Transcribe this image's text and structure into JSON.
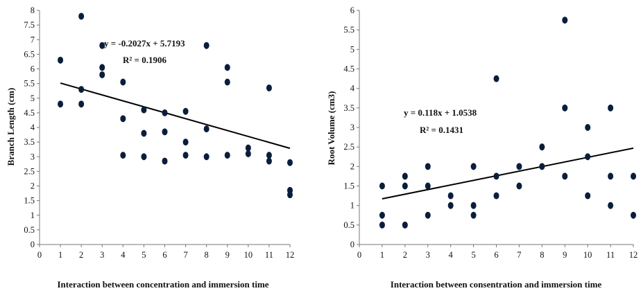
{
  "chart_data": [
    {
      "type": "scatter",
      "title": "",
      "xlabel": "Interaction between concentration and immersion time",
      "ylabel": "Branch Length (cm)",
      "xlim": [
        0,
        12
      ],
      "ylim": [
        0,
        8
      ],
      "xticks": [
        "0",
        "1",
        "2",
        "3",
        "4",
        "5",
        "6",
        "7",
        "8",
        "9",
        "10",
        "11",
        "12"
      ],
      "yticks": [
        "0",
        "0.5",
        "1",
        "1.5",
        "2",
        "2.5",
        "3",
        "3.5",
        "4",
        "4.5",
        "5",
        "5.5",
        "6",
        "6.5",
        "7",
        "7.5",
        "8"
      ],
      "grid": false,
      "legend": "none",
      "marker_color": "#0a1e3c",
      "points": [
        {
          "x": 1,
          "y": 6.3
        },
        {
          "x": 1,
          "y": 4.8
        },
        {
          "x": 2,
          "y": 7.8
        },
        {
          "x": 2,
          "y": 5.3
        },
        {
          "x": 2,
          "y": 4.8
        },
        {
          "x": 3,
          "y": 6.8
        },
        {
          "x": 3,
          "y": 6.05
        },
        {
          "x": 3,
          "y": 5.8
        },
        {
          "x": 4,
          "y": 5.55
        },
        {
          "x": 4,
          "y": 4.3
        },
        {
          "x": 4,
          "y": 3.05
        },
        {
          "x": 5,
          "y": 4.6
        },
        {
          "x": 5,
          "y": 3.8
        },
        {
          "x": 5,
          "y": 3.0
        },
        {
          "x": 6,
          "y": 4.5
        },
        {
          "x": 6,
          "y": 3.85
        },
        {
          "x": 6,
          "y": 2.85
        },
        {
          "x": 7,
          "y": 4.55
        },
        {
          "x": 7,
          "y": 3.5
        },
        {
          "x": 7,
          "y": 3.05
        },
        {
          "x": 8,
          "y": 6.8
        },
        {
          "x": 8,
          "y": 3.95
        },
        {
          "x": 8,
          "y": 3.0
        },
        {
          "x": 9,
          "y": 6.05
        },
        {
          "x": 9,
          "y": 5.55
        },
        {
          "x": 9,
          "y": 3.05
        },
        {
          "x": 10,
          "y": 3.3
        },
        {
          "x": 10,
          "y": 3.1
        },
        {
          "x": 11,
          "y": 5.35
        },
        {
          "x": 11,
          "y": 3.05
        },
        {
          "x": 11,
          "y": 2.85
        },
        {
          "x": 12,
          "y": 2.8
        },
        {
          "x": 12,
          "y": 1.85
        },
        {
          "x": 12,
          "y": 1.7
        }
      ],
      "trendline": {
        "slope": -0.2027,
        "intercept": 5.7193,
        "x_range": [
          1,
          12
        ]
      },
      "annotations": {
        "equation": "y = -0.2027x + 5.7193",
        "r2": "R² = 0.1906"
      }
    },
    {
      "type": "scatter",
      "title": "",
      "xlabel": "Interaction between consentration and immersion time",
      "ylabel": "Root Volume (cm3)",
      "xlim": [
        0,
        12
      ],
      "ylim": [
        0,
        6
      ],
      "xticks": [
        "0",
        "1",
        "2",
        "3",
        "4",
        "5",
        "6",
        "7",
        "8",
        "9",
        "10",
        "11",
        "12"
      ],
      "yticks": [
        "0",
        "0.5",
        "1",
        "1.5",
        "2",
        "2.5",
        "3",
        "3.5",
        "4",
        "4.5",
        "5",
        "5.5",
        "6"
      ],
      "grid": false,
      "legend": "none",
      "marker_color": "#0a1e3c",
      "points": [
        {
          "x": 1,
          "y": 1.5
        },
        {
          "x": 1,
          "y": 0.75
        },
        {
          "x": 1,
          "y": 0.5
        },
        {
          "x": 2,
          "y": 1.75
        },
        {
          "x": 2,
          "y": 1.5
        },
        {
          "x": 2,
          "y": 0.5
        },
        {
          "x": 3,
          "y": 2.0
        },
        {
          "x": 3,
          "y": 1.5
        },
        {
          "x": 3,
          "y": 0.75
        },
        {
          "x": 4,
          "y": 1.25
        },
        {
          "x": 4,
          "y": 1.0
        },
        {
          "x": 5,
          "y": 2.0
        },
        {
          "x": 5,
          "y": 1.0
        },
        {
          "x": 5,
          "y": 0.75
        },
        {
          "x": 6,
          "y": 4.25
        },
        {
          "x": 6,
          "y": 1.75
        },
        {
          "x": 6,
          "y": 1.25
        },
        {
          "x": 7,
          "y": 2.0
        },
        {
          "x": 7,
          "y": 1.5
        },
        {
          "x": 8,
          "y": 2.5
        },
        {
          "x": 8,
          "y": 2.0
        },
        {
          "x": 9,
          "y": 5.75
        },
        {
          "x": 9,
          "y": 3.5
        },
        {
          "x": 9,
          "y": 1.75
        },
        {
          "x": 10,
          "y": 3.0
        },
        {
          "x": 10,
          "y": 2.25
        },
        {
          "x": 10,
          "y": 1.25
        },
        {
          "x": 11,
          "y": 3.5
        },
        {
          "x": 11,
          "y": 1.75
        },
        {
          "x": 11,
          "y": 1.0
        },
        {
          "x": 12,
          "y": 1.75
        },
        {
          "x": 12,
          "y": 0.75
        }
      ],
      "trendline": {
        "slope": 0.118,
        "intercept": 1.0538,
        "x_range": [
          1,
          12
        ]
      },
      "annotations": {
        "equation": "y = 0.118x + 1.0538",
        "r2": "R² = 0.1431"
      }
    }
  ]
}
